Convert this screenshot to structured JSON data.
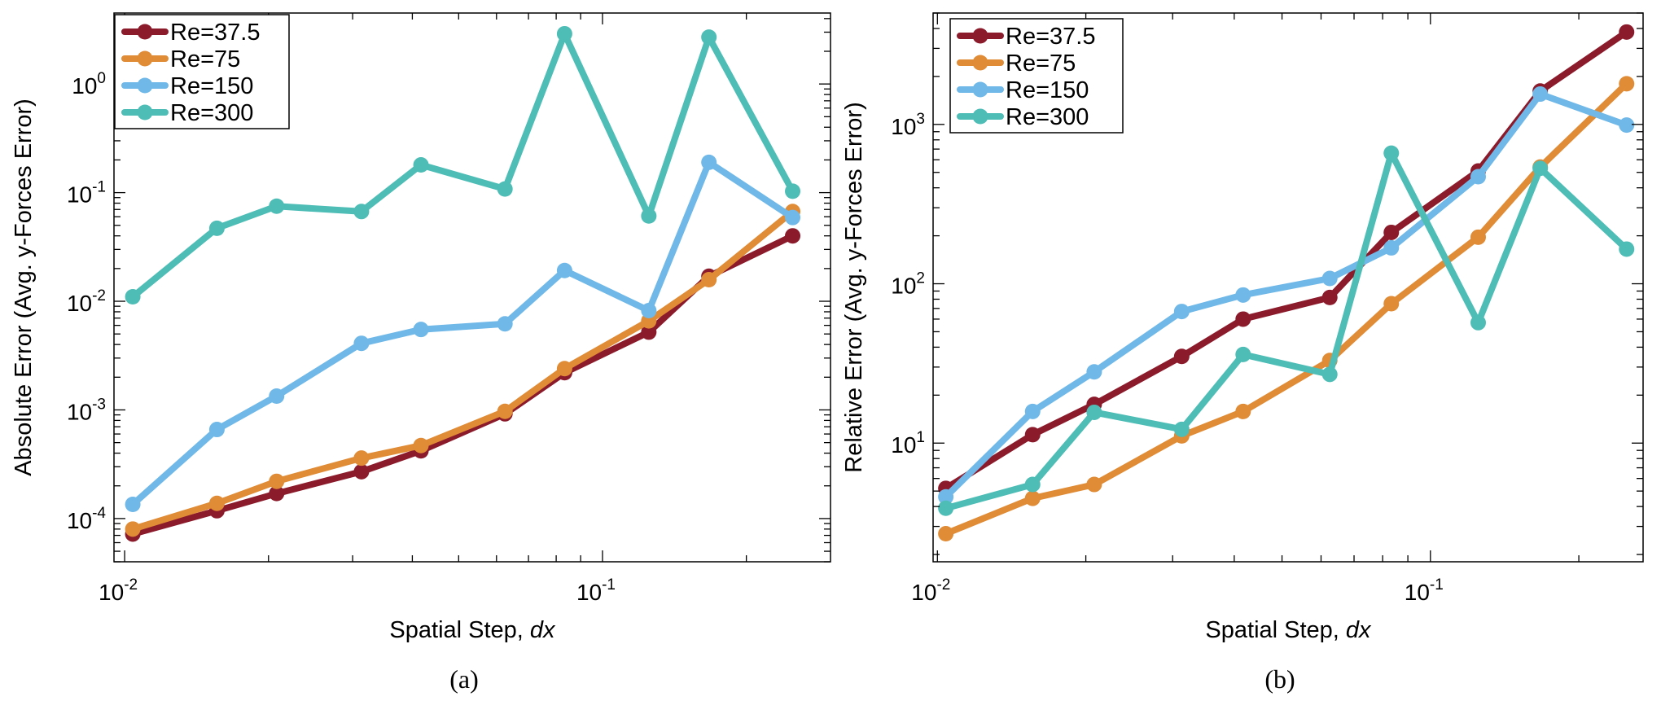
{
  "chart_data": [
    {
      "type": "line",
      "xscale": "log",
      "yscale": "log",
      "xlim": [
        0.0095,
        0.3
      ],
      "ylim": [
        4e-05,
        4.5
      ],
      "xlabel": "Spatial Step, dx",
      "xlabel_prefix": "Spatial Step, ",
      "xlabel_var": "dx",
      "ylabel": "Absolute Error (Avg. y-Forces Error)",
      "caption": "(a)",
      "legend_position": "top-left",
      "x_ticks": [
        {
          "value": 0.01,
          "base": "10",
          "exp": "-2"
        },
        {
          "value": 0.1,
          "base": "10",
          "exp": "-1"
        }
      ],
      "y_ticks": [
        {
          "value": 0.0001,
          "base": "10",
          "exp": "-4"
        },
        {
          "value": 0.001,
          "base": "10",
          "exp": "-3"
        },
        {
          "value": 0.01,
          "base": "10",
          "exp": "-2"
        },
        {
          "value": 0.1,
          "base": "10",
          "exp": "-1"
        },
        {
          "value": 1,
          "base": "10",
          "exp": "0"
        }
      ],
      "x": [
        0.0104,
        0.0156,
        0.0208,
        0.0313,
        0.0417,
        0.0625,
        0.0833,
        0.125,
        0.167,
        0.25
      ],
      "series": [
        {
          "name": "Re=37.5",
          "color": "#8b1a2b",
          "values": [
            7.2e-05,
            0.000118,
            0.00017,
            0.00027,
            0.00042,
            0.00092,
            0.0022,
            0.0052,
            0.017,
            0.04
          ]
        },
        {
          "name": "Re=75",
          "color": "#e08b35",
          "values": [
            8e-05,
            0.000138,
            0.00022,
            0.00036,
            0.00047,
            0.00097,
            0.0024,
            0.0066,
            0.0158,
            0.067
          ]
        },
        {
          "name": "Re=150",
          "color": "#6fb8e8",
          "values": [
            0.000135,
            0.00066,
            0.00134,
            0.0041,
            0.0055,
            0.0062,
            0.0192,
            0.0082,
            0.19,
            0.059
          ]
        },
        {
          "name": "Re=300",
          "color": "#4dbdb6",
          "values": [
            0.011,
            0.047,
            0.075,
            0.067,
            0.18,
            0.108,
            2.9,
            0.061,
            2.7,
            0.103
          ]
        }
      ]
    },
    {
      "type": "line",
      "xscale": "log",
      "yscale": "log",
      "xlim": [
        0.0098,
        0.27
      ],
      "ylim": [
        1.8,
        5000
      ],
      "xlabel": "Spatial Step, dx",
      "xlabel_prefix": "Spatial Step, ",
      "xlabel_var": "dx",
      "ylabel": "Relative Error (Avg. y-Forces Error)",
      "caption": "(b)",
      "legend_position": "top-left",
      "x_ticks": [
        {
          "value": 0.01,
          "base": "10",
          "exp": "-2"
        },
        {
          "value": 0.1,
          "base": "10",
          "exp": "-1"
        }
      ],
      "y_ticks": [
        {
          "value": 10,
          "base": "10",
          "exp": "1"
        },
        {
          "value": 100,
          "base": "10",
          "exp": "2"
        },
        {
          "value": 1000,
          "base": "10",
          "exp": "3"
        }
      ],
      "x": [
        0.0104,
        0.0156,
        0.0208,
        0.0313,
        0.0417,
        0.0625,
        0.0833,
        0.125,
        0.167,
        0.25
      ],
      "series": [
        {
          "name": "Re=37.5",
          "color": "#8b1a2b",
          "values": [
            5.2,
            11.3,
            17.5,
            35,
            60,
            82,
            210,
            510,
            1620,
            3800
          ]
        },
        {
          "name": "Re=75",
          "color": "#e08b35",
          "values": [
            2.7,
            4.5,
            5.5,
            11.1,
            15.8,
            33,
            75,
            196,
            540,
            1800
          ]
        },
        {
          "name": "Re=150",
          "color": "#6fb8e8",
          "values": [
            4.6,
            15.8,
            28,
            67,
            85,
            108,
            168,
            470,
            1550,
            990
          ]
        },
        {
          "name": "Re=300",
          "color": "#4dbdb6",
          "values": [
            3.9,
            5.5,
            15.6,
            12.2,
            36,
            27,
            660,
            57,
            530,
            165
          ]
        }
      ]
    }
  ]
}
